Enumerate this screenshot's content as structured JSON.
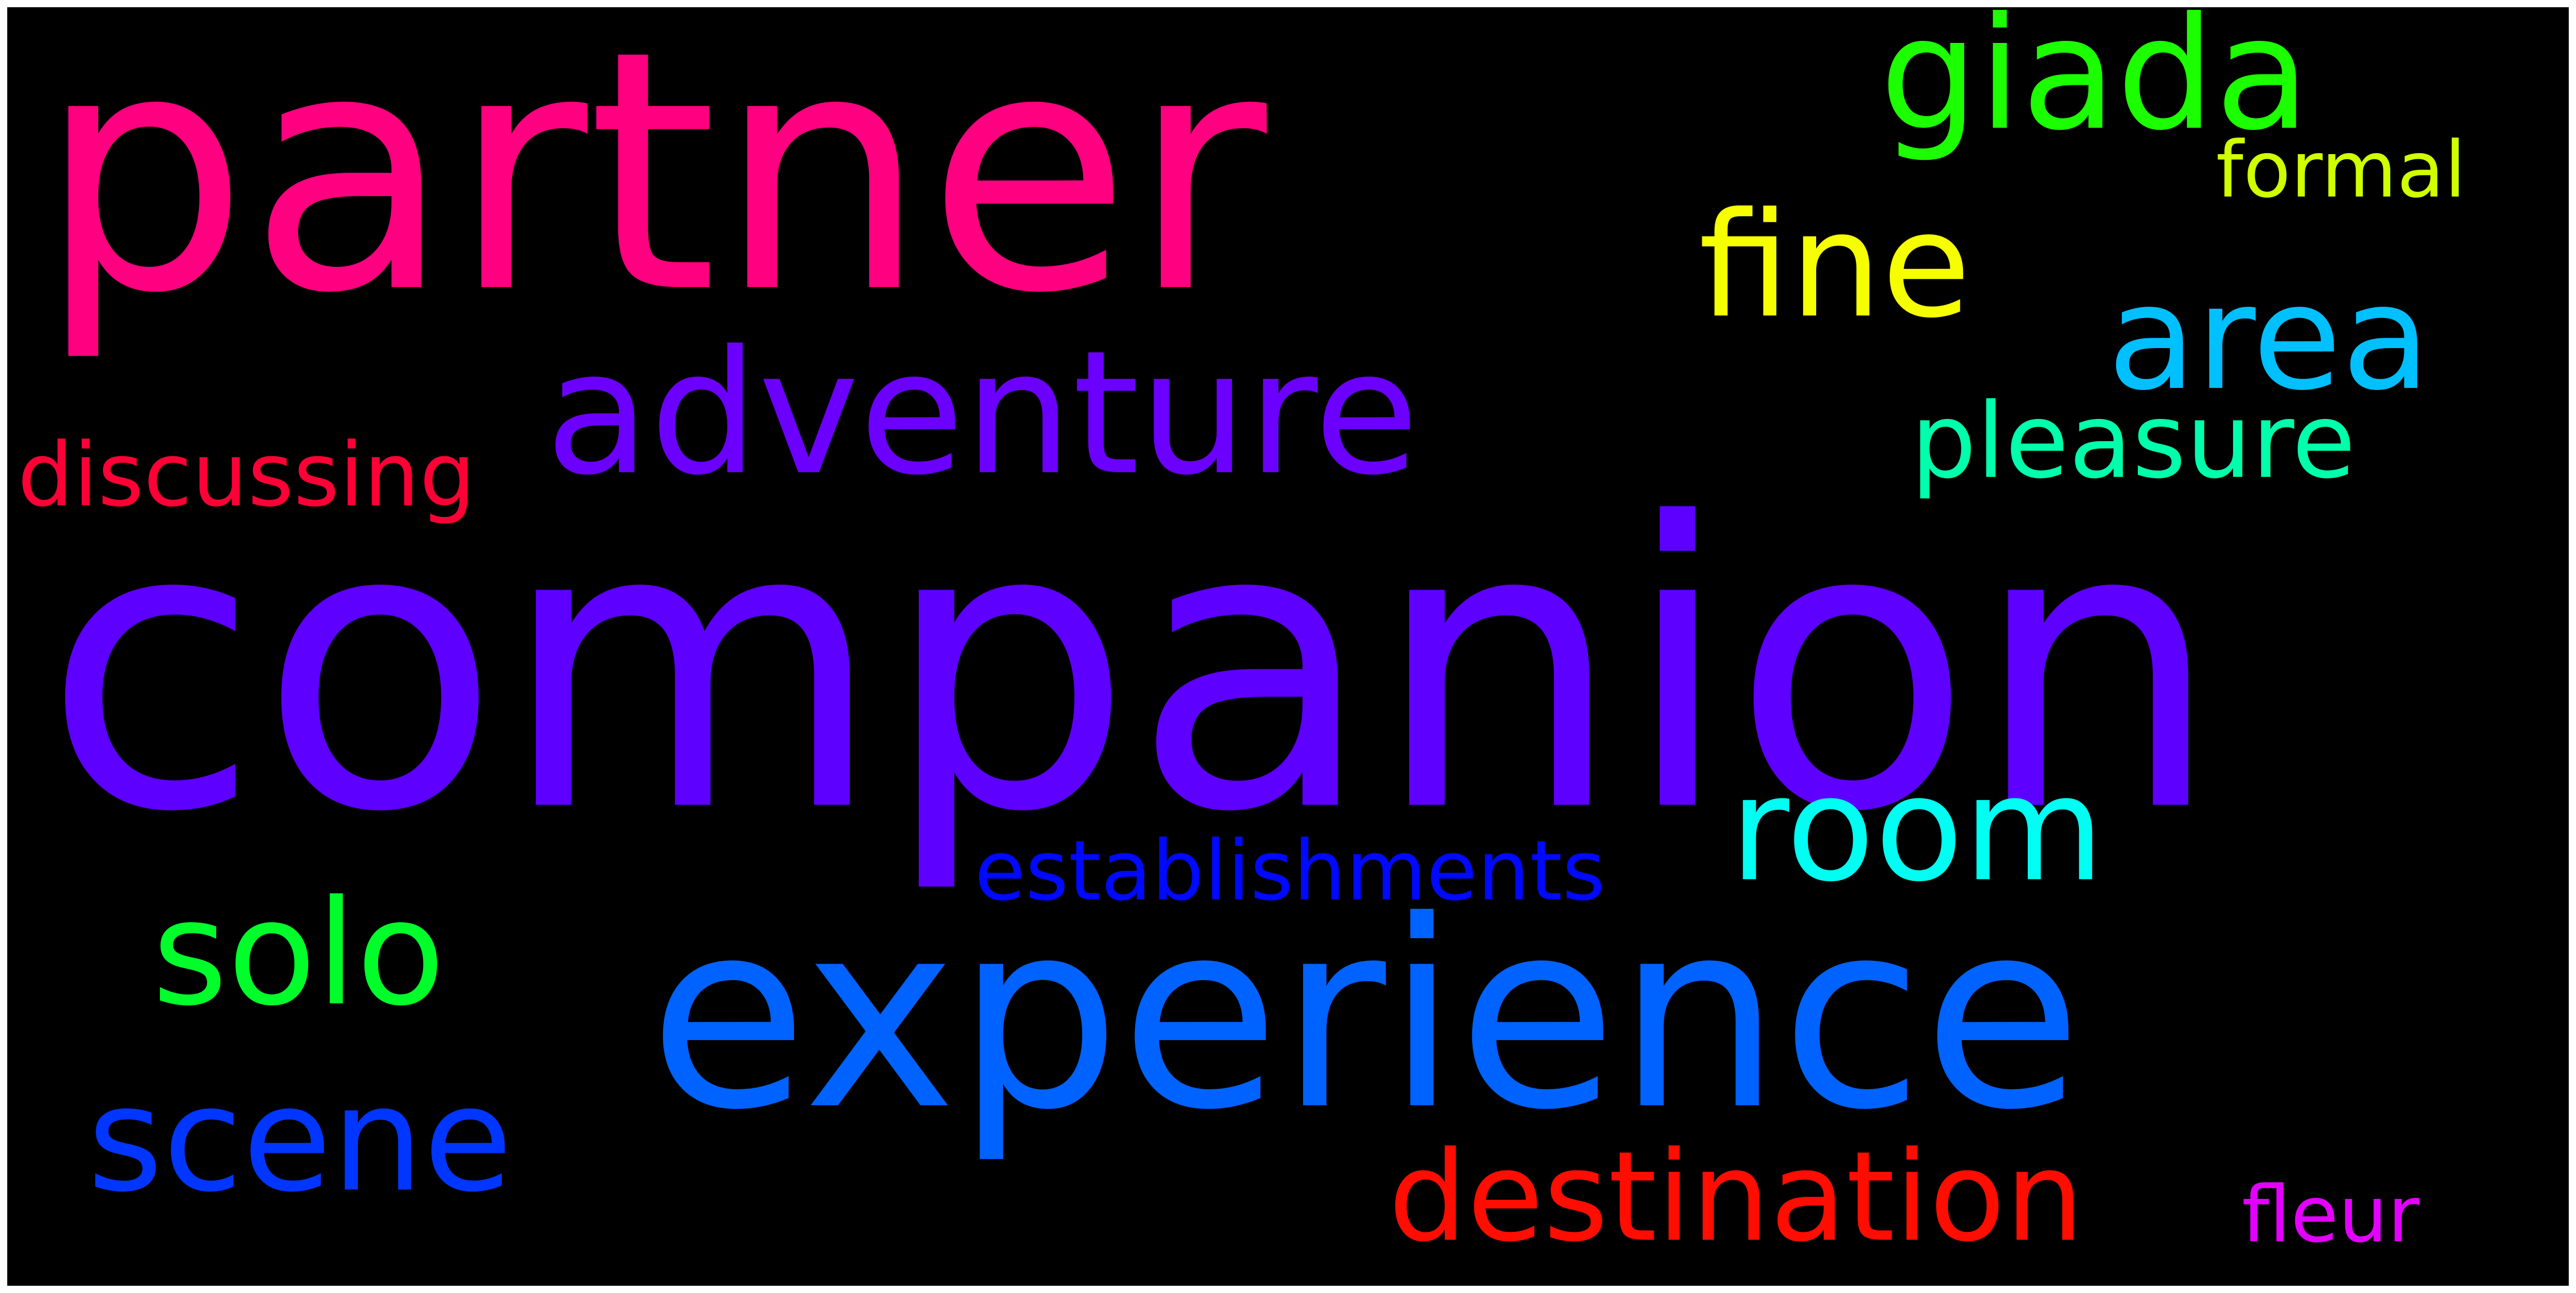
{
  "words": {
    "companion": {
      "text": "companion",
      "color": "#5e00ff"
    },
    "partner": {
      "text": "partner",
      "color": "#ff0080"
    },
    "experience": {
      "text": "experience",
      "color": "#0062ff"
    },
    "adventure": {
      "text": "adventure",
      "color": "#6c00ff"
    },
    "giada": {
      "text": "giada",
      "color": "#1bff00"
    },
    "fine": {
      "text": "fine",
      "color": "#f6ff00"
    },
    "area": {
      "text": "area",
      "color": "#00c0ff"
    },
    "room": {
      "text": "room",
      "color": "#00fff2"
    },
    "solo": {
      "text": "solo",
      "color": "#00ff2a"
    },
    "scene": {
      "text": "scene",
      "color": "#0036ff"
    },
    "pleasure": {
      "text": "pleasure",
      "color": "#00ffab"
    },
    "destination": {
      "text": "destination",
      "color": "#ff0d00"
    },
    "establishments": {
      "text": "establishments",
      "color": "#0009ff"
    },
    "discussing": {
      "text": "discussing",
      "color": "#ff0036"
    },
    "formal": {
      "text": "formal",
      "color": "#d0ff00"
    },
    "fleur": {
      "text": "fleur",
      "color": "#e300ff"
    }
  }
}
